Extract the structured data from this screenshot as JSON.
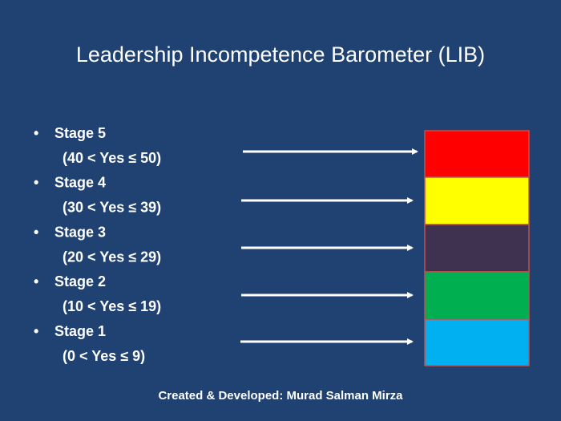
{
  "header": {
    "title": "Leadership Incompetence  Barometer (LIB)"
  },
  "stages": [
    {
      "name": "Stage 5",
      "range": "(40 < Yes ≤ 50)"
    },
    {
      "name": "Stage 4",
      "range": "(30 < Yes ≤ 39)"
    },
    {
      "name": "Stage 3",
      "range": "(20 < Yes ≤ 29)"
    },
    {
      "name": "Stage 2",
      "range": "(10 < Yes ≤ 19)"
    },
    {
      "name": "Stage 1",
      "range": "(0 < Yes ≤ 9)"
    }
  ],
  "footer": {
    "credit": "Created & Developed: Murad Salman Mirza"
  }
}
